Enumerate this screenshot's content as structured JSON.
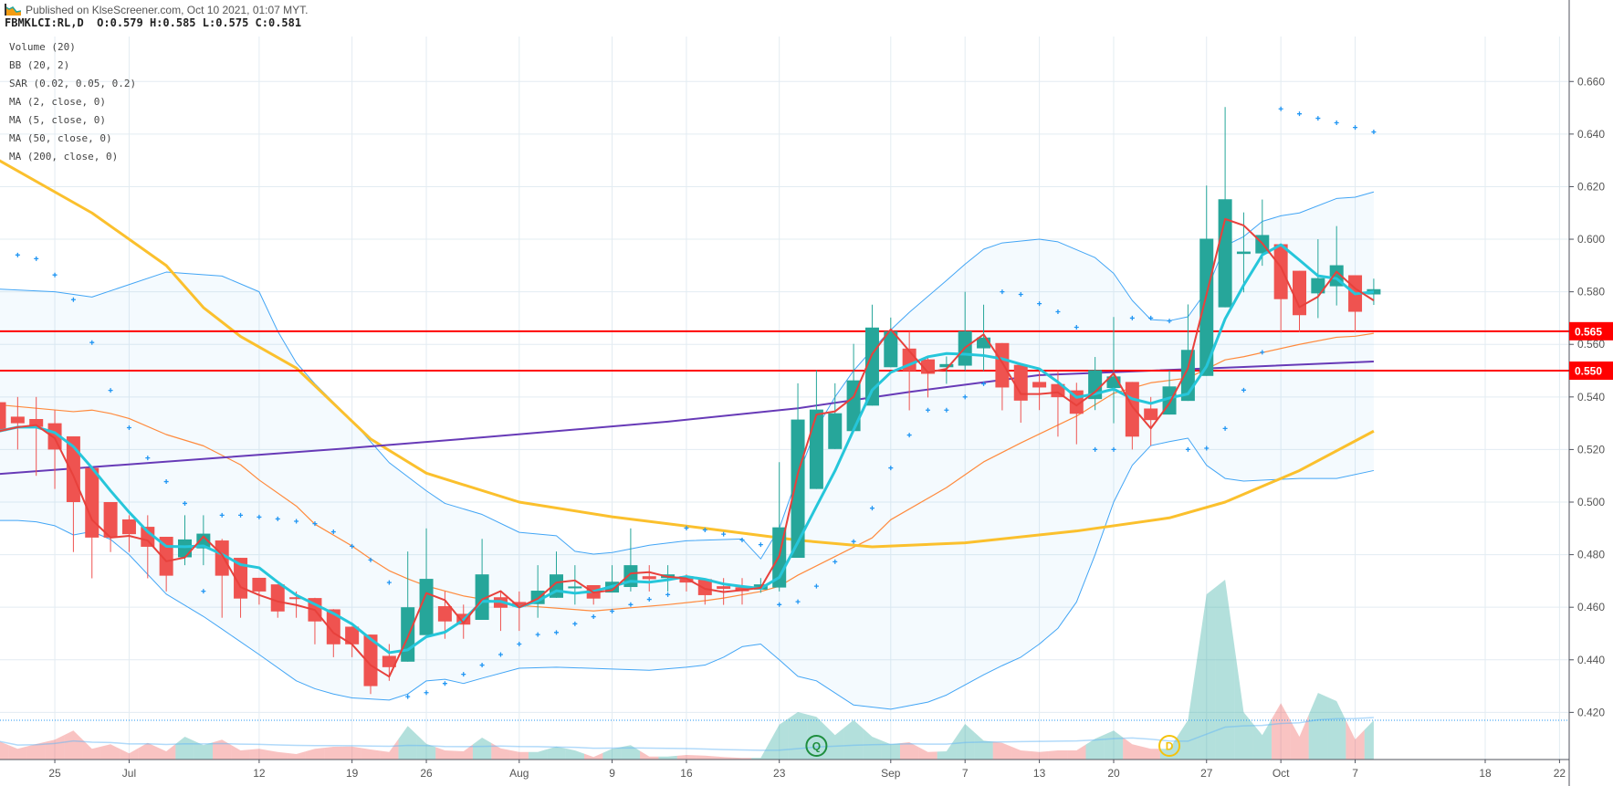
{
  "header": {
    "published": "Published on KlseScreener.com, Oct 10 2021, 01:07 MYT.",
    "symbol_line": "FBMKLCI:RL,D  O:0.579 H:0.585 L:0.575 C:0.581",
    "logo_icon": "chart-logo-icon"
  },
  "legend": [
    "Volume (20)",
    "BB (20, 2)",
    "SAR (0.02, 0.05, 0.2)",
    "MA (2, close, 0)",
    "MA (5, close, 0)",
    "MA (50, close, 0)",
    "MA (200, close, 0)"
  ],
  "colors": {
    "up": "#26a69a",
    "down": "#ef5350",
    "ma2": "#e8413c",
    "ma5": "#26c6da",
    "ma50": "#fbc02d",
    "ma200": "#673ab7",
    "bb_band": "#42a5f5",
    "bb_mid": "#ff8a3d",
    "sar": "#2196f3",
    "level_line": "#ff0000",
    "grid": "#e3ecf2",
    "axis": "#50535e"
  },
  "chart_data": {
    "type": "candlestick",
    "title": "",
    "ylim": [
      0.392,
      0.691
    ],
    "y_ticks": [
      "0.420",
      "0.440",
      "0.460",
      "0.480",
      "0.500",
      "0.520",
      "0.540",
      "0.560",
      "0.580",
      "0.600",
      "0.620",
      "0.640",
      "0.660"
    ],
    "x_ticks": [
      {
        "label": "25",
        "index": 3
      },
      {
        "label": "Jul",
        "index": 7
      },
      {
        "label": "12",
        "index": 14
      },
      {
        "label": "19",
        "index": 19
      },
      {
        "label": "26",
        "index": 23
      },
      {
        "label": "Aug",
        "index": 28
      },
      {
        "label": "9",
        "index": 33
      },
      {
        "label": "16",
        "index": 37
      },
      {
        "label": "23",
        "index": 42
      },
      {
        "label": "Sep",
        "index": 48
      },
      {
        "label": "7",
        "index": 52
      },
      {
        "label": "13",
        "index": 56
      },
      {
        "label": "20",
        "index": 60
      },
      {
        "label": "27",
        "index": 65
      },
      {
        "label": "Oct",
        "index": 69
      },
      {
        "label": "7",
        "index": 73
      },
      {
        "label": "18",
        "index": 80
      },
      {
        "label": "22",
        "index": 84
      }
    ],
    "grid": true,
    "candles": [
      [
        0.538,
        0.54,
        0.525,
        0.527
      ],
      [
        0.5325,
        0.54,
        0.52,
        0.53
      ],
      [
        0.5316,
        0.54,
        0.51,
        0.5286
      ],
      [
        0.53,
        0.535,
        0.505,
        0.52
      ],
      [
        0.525,
        0.525,
        0.481,
        0.5
      ],
      [
        0.513,
        0.513,
        0.471,
        0.4865
      ],
      [
        0.5,
        0.5,
        0.481,
        0.4865
      ],
      [
        0.4934,
        0.495,
        0.481,
        0.4878
      ],
      [
        0.4906,
        0.495,
        0.471,
        0.483
      ],
      [
        0.4868,
        0.4868,
        0.466,
        0.472
      ],
      [
        0.479,
        0.495,
        0.476,
        0.4858
      ],
      [
        0.4824,
        0.495,
        0.476,
        0.488
      ],
      [
        0.4854,
        0.486,
        0.456,
        0.472
      ],
      [
        0.4788,
        0.4788,
        0.456,
        0.4633
      ],
      [
        0.4712,
        0.4712,
        0.461,
        0.466
      ],
      [
        0.4687,
        0.4687,
        0.456,
        0.4584
      ],
      [
        0.4638,
        0.466,
        0.456,
        0.4633
      ],
      [
        0.4635,
        0.4636,
        0.4459,
        0.4546
      ],
      [
        0.4592,
        0.4593,
        0.441,
        0.4459
      ],
      [
        0.4526,
        0.4527,
        0.441,
        0.4459
      ],
      [
        0.4496,
        0.4496,
        0.427,
        0.43
      ],
      [
        0.4415,
        0.446,
        0.432,
        0.4372
      ],
      [
        0.4393,
        0.4812,
        0.4393,
        0.46
      ],
      [
        0.4494,
        0.49,
        0.4494,
        0.4708
      ],
      [
        0.4604,
        0.466,
        0.448,
        0.4546
      ],
      [
        0.4575,
        0.461,
        0.448,
        0.4534
      ],
      [
        0.4552,
        0.486,
        0.4552,
        0.4725
      ],
      [
        0.4638,
        0.466,
        0.451,
        0.4598
      ],
      [
        0.462,
        0.466,
        0.451,
        0.4602
      ],
      [
        0.4612,
        0.476,
        0.456,
        0.4663
      ],
      [
        0.4636,
        0.4812,
        0.4636,
        0.4725
      ],
      [
        0.4672,
        0.476,
        0.461,
        0.4679
      ],
      [
        0.4684,
        0.4684,
        0.461,
        0.4633
      ],
      [
        0.4656,
        0.476,
        0.4656,
        0.4697
      ],
      [
        0.4677,
        0.49,
        0.466,
        0.476
      ],
      [
        0.4718,
        0.476,
        0.466,
        0.4707
      ],
      [
        0.4711,
        0.476,
        0.466,
        0.4725
      ],
      [
        0.4718,
        0.4725,
        0.466,
        0.4694
      ],
      [
        0.4707,
        0.4708,
        0.461,
        0.4646
      ],
      [
        0.468,
        0.4711,
        0.4609,
        0.467
      ],
      [
        0.4676,
        0.4711,
        0.461,
        0.4661
      ],
      [
        0.4667,
        0.4711,
        0.4655,
        0.4687
      ],
      [
        0.4675,
        0.5152,
        0.466,
        0.4904
      ],
      [
        0.4788,
        0.5452,
        0.4788,
        0.5314
      ],
      [
        0.505,
        0.5502,
        0.505,
        0.5352
      ],
      [
        0.5202,
        0.5452,
        0.5202,
        0.5338
      ],
      [
        0.527,
        0.5602,
        0.527,
        0.5463
      ],
      [
        0.5367,
        0.5751,
        0.5367,
        0.5664
      ],
      [
        0.5513,
        0.5702,
        0.5513,
        0.565
      ],
      [
        0.5584,
        0.565,
        0.5349,
        0.5499
      ],
      [
        0.5543,
        0.5554,
        0.5398,
        0.5488
      ],
      [
        0.5513,
        0.5554,
        0.545,
        0.5525
      ],
      [
        0.5519,
        0.58,
        0.5499,
        0.565
      ],
      [
        0.5585,
        0.5751,
        0.5499,
        0.5626
      ],
      [
        0.5605,
        0.5605,
        0.5349,
        0.5436
      ],
      [
        0.5522,
        0.5522,
        0.5302,
        0.5386
      ],
      [
        0.5457,
        0.5503,
        0.535,
        0.5436
      ],
      [
        0.5449,
        0.5503,
        0.5249,
        0.5399
      ],
      [
        0.5425,
        0.5454,
        0.522,
        0.5336
      ],
      [
        0.5392,
        0.5552,
        0.535,
        0.5502
      ],
      [
        0.5434,
        0.5704,
        0.53,
        0.5478
      ],
      [
        0.5457,
        0.5457,
        0.52,
        0.5249
      ],
      [
        0.5356,
        0.54,
        0.5215,
        0.5312
      ],
      [
        0.5333,
        0.5501,
        0.5333,
        0.544
      ],
      [
        0.5385,
        0.5752,
        0.5385,
        0.5579
      ],
      [
        0.548,
        0.6204,
        0.548,
        0.6002
      ],
      [
        0.5741,
        0.6503,
        0.5741,
        0.6152
      ],
      [
        0.5944,
        0.6102,
        0.5798,
        0.5953
      ],
      [
        0.5946,
        0.6151,
        0.5899,
        0.6016
      ],
      [
        0.5981,
        0.5981,
        0.5645,
        0.5772
      ],
      [
        0.588,
        0.588,
        0.5647,
        0.5711
      ],
      [
        0.5794,
        0.6,
        0.57,
        0.5852
      ],
      [
        0.5821,
        0.605,
        0.5748,
        0.5901
      ],
      [
        0.5863,
        0.5863,
        0.5647,
        0.5724
      ],
      [
        0.579,
        0.585,
        0.575,
        0.581
      ]
    ],
    "ma50": [
      [
        0,
        0.63
      ],
      [
        5,
        0.61
      ],
      [
        9,
        0.59
      ],
      [
        11,
        0.574
      ],
      [
        13,
        0.563
      ],
      [
        16,
        0.551
      ],
      [
        20,
        0.524
      ],
      [
        23,
        0.511
      ],
      [
        28,
        0.5
      ],
      [
        33,
        0.4944
      ],
      [
        38,
        0.49
      ],
      [
        43,
        0.4855
      ],
      [
        47,
        0.483
      ],
      [
        52,
        0.4845
      ],
      [
        58,
        0.489
      ],
      [
        63,
        0.494
      ],
      [
        66,
        0.5
      ],
      [
        70,
        0.512
      ],
      [
        74,
        0.527
      ]
    ],
    "ma200": [
      [
        0,
        0.5107
      ],
      [
        19,
        0.5206
      ],
      [
        26,
        0.5246
      ],
      [
        36,
        0.5306
      ],
      [
        43,
        0.5357
      ],
      [
        49,
        0.5419
      ],
      [
        56,
        0.5483
      ],
      [
        67,
        0.5514
      ],
      [
        74,
        0.5535
      ]
    ],
    "bb_upper": [
      [
        0,
        0.581
      ],
      [
        3,
        0.58
      ],
      [
        5,
        0.578
      ],
      [
        9,
        0.5875
      ],
      [
        12,
        0.586
      ],
      [
        14,
        0.58
      ],
      [
        15,
        0.565
      ],
      [
        16,
        0.553
      ],
      [
        17,
        0.545
      ],
      [
        19,
        0.531
      ],
      [
        21,
        0.515
      ],
      [
        23,
        0.5043
      ],
      [
        24,
        0.4995
      ],
      [
        26,
        0.4953
      ],
      [
        28,
        0.4885
      ],
      [
        30,
        0.4872
      ],
      [
        31,
        0.4813
      ],
      [
        32,
        0.4802
      ],
      [
        33,
        0.4808
      ],
      [
        35,
        0.4836
      ],
      [
        37,
        0.4853
      ],
      [
        40,
        0.486
      ],
      [
        41,
        0.4784
      ],
      [
        42,
        0.49
      ],
      [
        43,
        0.51
      ],
      [
        44,
        0.528
      ],
      [
        45,
        0.54
      ],
      [
        46,
        0.55
      ],
      [
        47,
        0.558
      ],
      [
        48,
        0.5655
      ],
      [
        49,
        0.5722
      ],
      [
        51,
        0.5843
      ],
      [
        52,
        0.5905
      ],
      [
        53,
        0.5962
      ],
      [
        54,
        0.5986
      ],
      [
        56,
        0.6
      ],
      [
        57,
        0.599
      ],
      [
        59,
        0.593
      ],
      [
        60,
        0.587
      ],
      [
        61,
        0.5767
      ],
      [
        62,
        0.5694
      ],
      [
        63,
        0.569
      ],
      [
        64,
        0.5705
      ],
      [
        65,
        0.5804
      ],
      [
        66,
        0.5975
      ],
      [
        67,
        0.601
      ],
      [
        68,
        0.6068
      ],
      [
        69,
        0.6089
      ],
      [
        70,
        0.61
      ],
      [
        72,
        0.6155
      ],
      [
        73,
        0.616
      ],
      [
        74,
        0.618
      ]
    ],
    "bb_lower": [
      [
        0,
        0.493
      ],
      [
        1,
        0.493
      ],
      [
        2,
        0.4925
      ],
      [
        3,
        0.491
      ],
      [
        4,
        0.4875
      ],
      [
        5,
        0.4888
      ],
      [
        6,
        0.4858
      ],
      [
        7,
        0.48
      ],
      [
        9,
        0.465
      ],
      [
        11,
        0.4565
      ],
      [
        12,
        0.4517
      ],
      [
        14,
        0.442
      ],
      [
        16,
        0.432
      ],
      [
        17,
        0.429
      ],
      [
        18,
        0.427
      ],
      [
        19,
        0.4255
      ],
      [
        21,
        0.4247
      ],
      [
        22,
        0.427
      ],
      [
        23,
        0.432
      ],
      [
        24,
        0.4326
      ],
      [
        25,
        0.431
      ],
      [
        26,
        0.433
      ],
      [
        28,
        0.4368
      ],
      [
        30,
        0.4372
      ],
      [
        33,
        0.4365
      ],
      [
        35,
        0.436
      ],
      [
        37,
        0.4372
      ],
      [
        38,
        0.438
      ],
      [
        39,
        0.441
      ],
      [
        40,
        0.445
      ],
      [
        41,
        0.446
      ],
      [
        42,
        0.44
      ],
      [
        43,
        0.4337
      ],
      [
        44,
        0.432
      ],
      [
        46,
        0.4228
      ],
      [
        48,
        0.4212
      ],
      [
        50,
        0.4239
      ],
      [
        51,
        0.4266
      ],
      [
        53,
        0.4343
      ],
      [
        54,
        0.4378
      ],
      [
        55,
        0.441
      ],
      [
        56,
        0.446
      ],
      [
        57,
        0.452
      ],
      [
        58,
        0.462
      ],
      [
        59,
        0.48
      ],
      [
        60,
        0.5
      ],
      [
        61,
        0.514
      ],
      [
        62,
        0.5215
      ],
      [
        63,
        0.523
      ],
      [
        64,
        0.5243
      ],
      [
        65,
        0.514
      ],
      [
        66,
        0.509
      ],
      [
        67,
        0.508
      ],
      [
        70,
        0.509
      ],
      [
        72,
        0.509
      ],
      [
        74,
        0.512
      ]
    ],
    "bb_mid": [
      [
        0,
        0.537
      ],
      [
        4,
        0.5344
      ],
      [
        5,
        0.535
      ],
      [
        6,
        0.5337
      ],
      [
        7,
        0.5318
      ],
      [
        9,
        0.5257
      ],
      [
        11,
        0.5214
      ],
      [
        13,
        0.5142
      ],
      [
        14,
        0.5084
      ],
      [
        16,
        0.4985
      ],
      [
        17,
        0.4916
      ],
      [
        19,
        0.4833
      ],
      [
        20,
        0.4784
      ],
      [
        21,
        0.4739
      ],
      [
        22,
        0.4708
      ],
      [
        23,
        0.4681
      ],
      [
        25,
        0.4643
      ],
      [
        28,
        0.4607
      ],
      [
        32,
        0.4586
      ],
      [
        36,
        0.461
      ],
      [
        38,
        0.4625
      ],
      [
        39,
        0.4635
      ],
      [
        41,
        0.466
      ],
      [
        42,
        0.468
      ],
      [
        43,
        0.4722
      ],
      [
        47,
        0.4864
      ],
      [
        48,
        0.4933
      ],
      [
        51,
        0.5055
      ],
      [
        53,
        0.5153
      ],
      [
        55,
        0.5225
      ],
      [
        58,
        0.5327
      ],
      [
        60,
        0.5414
      ],
      [
        62,
        0.5454
      ],
      [
        64,
        0.5472
      ],
      [
        66,
        0.5541
      ],
      [
        67,
        0.5553
      ],
      [
        70,
        0.56
      ],
      [
        72,
        0.5627
      ],
      [
        73,
        0.5631
      ],
      [
        74,
        0.5642
      ]
    ],
    "sar": [
      null,
      0.594,
      0.5926,
      0.5864,
      0.577,
      0.5607,
      0.5425,
      0.5283,
      0.5168,
      0.5078,
      0.4995,
      0.4661,
      0.495,
      0.495,
      0.4943,
      0.4936,
      0.4927,
      0.4918,
      0.4887,
      0.4832,
      0.478,
      0.4694,
      0.426,
      0.4275,
      0.431,
      0.4345,
      0.438,
      0.442,
      0.446,
      0.4496,
      0.4504,
      0.4537,
      0.4564,
      0.4585,
      0.461,
      0.463,
      0.4648,
      0.4901,
      0.4894,
      0.4878,
      0.4856,
      0.4838,
      0.461,
      0.4621,
      0.468,
      0.4773,
      0.485,
      0.4977,
      0.513,
      0.5255,
      0.535,
      0.535,
      0.54,
      0.545,
      0.58,
      0.579,
      0.5755,
      0.5724,
      0.5665,
      0.52,
      0.52,
      0.57,
      0.57,
      0.5689,
      0.52,
      0.5205,
      0.528,
      0.5426,
      0.557,
      0.6496,
      0.6477,
      0.646,
      0.6443,
      0.6425,
      0.6408
    ],
    "volume_relative": [
      20,
      11.7,
      17,
      21.7,
      31.7,
      11.7,
      16.7,
      6.7,
      18.3,
      9,
      25,
      15.7,
      21.7,
      10,
      11.7,
      8.3,
      6,
      11.7,
      14,
      14.3,
      11,
      8.3,
      36.7,
      17.3,
      10,
      9,
      24,
      12.3,
      8.3,
      8.3,
      14.3,
      10,
      2.7,
      11.7,
      15.7,
      3.3,
      3.3,
      5,
      4.3,
      2.7,
      1.7,
      1.7,
      38.3,
      52,
      46.7,
      26.7,
      43.3,
      25,
      16.7,
      19,
      8.3,
      9,
      39,
      20.7,
      18.3,
      10,
      8.3,
      10,
      10,
      22.7,
      31.7,
      16.7,
      11.7,
      11.7,
      43.3,
      181,
      197,
      51.7,
      26.7,
      61.7,
      25,
      73,
      64,
      22,
      43
    ],
    "levels": [
      {
        "value": 0.565,
        "label": "0.565"
      },
      {
        "value": 0.55,
        "label": "0.550"
      }
    ],
    "markers": [
      {
        "label": "Q",
        "index": 44,
        "color": "#1e8e3e"
      },
      {
        "label": "D",
        "index": 63,
        "color": "#f4c20d"
      }
    ]
  }
}
